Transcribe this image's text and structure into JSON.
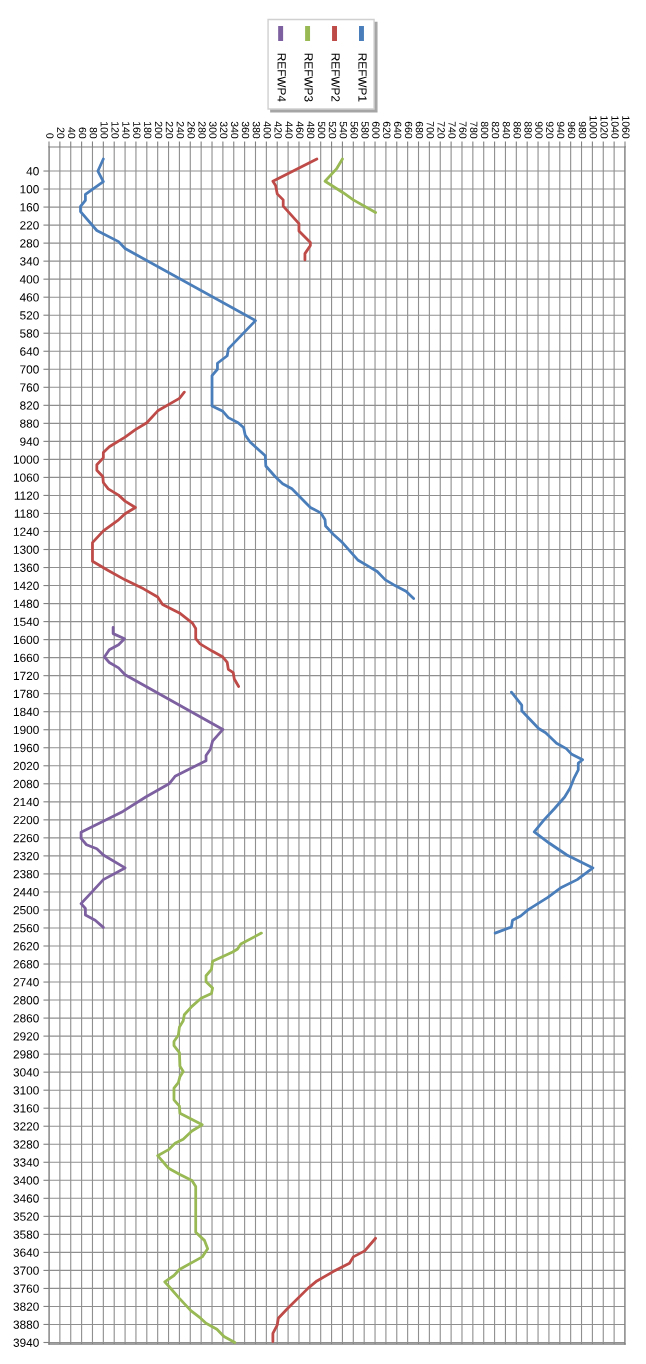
{
  "chart_data": {
    "type": "line",
    "xlim": [
      0,
      1060
    ],
    "xticks": [
      0,
      20,
      40,
      60,
      80,
      100,
      120,
      140,
      160,
      180,
      200,
      220,
      240,
      260,
      280,
      300,
      320,
      340,
      360,
      380,
      400,
      420,
      440,
      460,
      480,
      500,
      520,
      540,
      560,
      580,
      600,
      620,
      640,
      660,
      680,
      700,
      720,
      740,
      760,
      780,
      800,
      820,
      840,
      860,
      880,
      900,
      920,
      940,
      960,
      980,
      1000,
      1020,
      1040,
      1060
    ],
    "ylim": [
      3945,
      -40
    ],
    "yticks": [
      40,
      100,
      160,
      220,
      280,
      340,
      400,
      460,
      520,
      580,
      640,
      700,
      760,
      820,
      880,
      940,
      1000,
      1060,
      1120,
      1180,
      1240,
      1300,
      1360,
      1420,
      1480,
      1540,
      1600,
      1660,
      1720,
      1780,
      1840,
      1900,
      1960,
      2020,
      2080,
      2140,
      2200,
      2260,
      2320,
      2380,
      2440,
      2500,
      2560,
      2620,
      2680,
      2740,
      2800,
      2860,
      2920,
      2980,
      3040,
      3100,
      3160,
      3220,
      3280,
      3340,
      3400,
      3460,
      3520,
      3580,
      3640,
      3700,
      3760,
      3820,
      3880,
      3940
    ],
    "grid": true,
    "legend": "top",
    "series": [
      {
        "name": "REFWP1",
        "color": "#4a7ebb",
        "x": [
          100,
          90,
          100,
          67,
          67,
          58,
          58,
          88,
          128,
          140,
          380,
          330,
          328,
          310,
          310,
          300,
          300,
          320,
          330,
          348,
          358,
          361,
          370,
          398,
          399,
          416,
          430,
          447,
          481,
          500,
          508,
          509,
          523,
          540,
          569,
          585,
          604,
          619,
          634,
          657,
          671,
          null,
          851,
          870,
          870,
          901,
          914,
          934,
          952,
          962,
          982,
          974,
          974,
          966,
          959,
          949,
          930,
          911,
          893,
          921,
          953,
          1001,
          972,
          941,
          918,
          882,
          868,
          853,
          851,
          821
        ],
        "values": [
          0,
          40,
          75,
          118,
          138,
          158,
          175,
          238,
          275,
          298,
          538,
          632,
          655,
          680,
          700,
          721,
          822,
          840,
          861,
          878,
          894,
          919,
          942,
          988,
          1022,
          1057,
          1081,
          1098,
          1160,
          1178,
          1201,
          1222,
          1249,
          1277,
          1336,
          1353,
          1373,
          1401,
          1417,
          1439,
          1463,
          null,
          1775,
          1818,
          1837,
          1896,
          1910,
          1945,
          1963,
          1982,
          2000,
          2011,
          2034,
          2062,
          2094,
          2124,
          2163,
          2200,
          2240,
          2278,
          2317,
          2360,
          2399,
          2427,
          2458,
          2499,
          2520,
          2534,
          2557,
          2577
        ]
      },
      {
        "name": "REFWP2",
        "color": "#be4b48",
        "x": [
          493,
          412,
          417,
          420,
          431,
          431,
          460,
          460,
          481,
          481,
          471,
          471,
          null,
          249,
          240,
          201,
          180,
          159,
          140,
          111,
          100,
          100,
          88,
          88,
          99,
          100,
          109,
          128,
          140,
          159,
          140,
          128,
          100,
          80,
          80,
          109,
          140,
          174,
          200,
          209,
          240,
          264,
          270,
          270,
          278,
          301,
          320,
          328,
          330,
          339,
          341,
          349,
          null,
          601,
          581,
          560,
          553,
          523,
          493,
          477,
          439,
          422,
          420,
          412,
          412
        ],
        "values": [
          0,
          74,
          88,
          116,
          136,
          157,
          215,
          240,
          278,
          288,
          315,
          336,
          null,
          776,
          797,
          837,
          878,
          901,
          926,
          958,
          977,
          995,
          1018,
          1036,
          1057,
          1077,
          1098,
          1119,
          1139,
          1160,
          1181,
          1201,
          1238,
          1277,
          1339,
          1370,
          1401,
          1431,
          1458,
          1483,
          1511,
          1545,
          1563,
          1597,
          1614,
          1639,
          1658,
          1676,
          1699,
          1710,
          1731,
          1756,
          null,
          3593,
          3635,
          3655,
          3676,
          3704,
          3735,
          3759,
          3827,
          3859,
          3882,
          3910,
          3937
        ]
      },
      {
        "name": "REFWP3",
        "color": "#98b954",
        "x": [
          540,
          529,
          508,
          542,
          560,
          601,
          null,
          391,
          353,
          347,
          338,
          301,
          299,
          289,
          289,
          301,
          299,
          280,
          263,
          249,
          247,
          240,
          238,
          230,
          230,
          240,
          241,
          247,
          241,
          238,
          230,
          230,
          240,
          241,
          282,
          263,
          247,
          232,
          220,
          200,
          220,
          240,
          263,
          270,
          270,
          286,
          292,
          282,
          240,
          230,
          213,
          220,
          240,
          261,
          279,
          289,
          309,
          322,
          342
        ],
        "values": [
          0,
          33,
          74,
          113,
          136,
          178,
          null,
          2577,
          2613,
          2630,
          2640,
          2671,
          2698,
          2719,
          2739,
          2760,
          2778,
          2794,
          2821,
          2849,
          2869,
          2890,
          2917,
          2938,
          2952,
          2975,
          3020,
          3038,
          3055,
          3075,
          3093,
          3132,
          3153,
          3177,
          3215,
          3236,
          3263,
          3277,
          3298,
          3318,
          3360,
          3380,
          3401,
          3421,
          3573,
          3600,
          3628,
          3655,
          3697,
          3717,
          3738,
          3752,
          3793,
          3834,
          3859,
          3876,
          3896,
          3920,
          3940
        ]
      },
      {
        "name": "REFWP4",
        "color": "#7d60a0",
        "x": [
          118,
          118,
          139,
          128,
          111,
          102,
          111,
          128,
          140,
          320,
          301,
          297,
          289,
          289,
          232,
          221,
          178,
          136,
          59,
          59,
          69,
          88,
          100,
          140,
          100,
          80,
          59,
          67,
          67,
          85,
          100
        ],
        "values": [
          1559,
          1580,
          1597,
          1617,
          1634,
          1658,
          1676,
          1694,
          1717,
          1899,
          1938,
          1965,
          1986,
          2003,
          2055,
          2080,
          2124,
          2172,
          2241,
          2262,
          2283,
          2296,
          2317,
          2360,
          2399,
          2438,
          2479,
          2495,
          2517,
          2534,
          2558
        ]
      }
    ]
  }
}
